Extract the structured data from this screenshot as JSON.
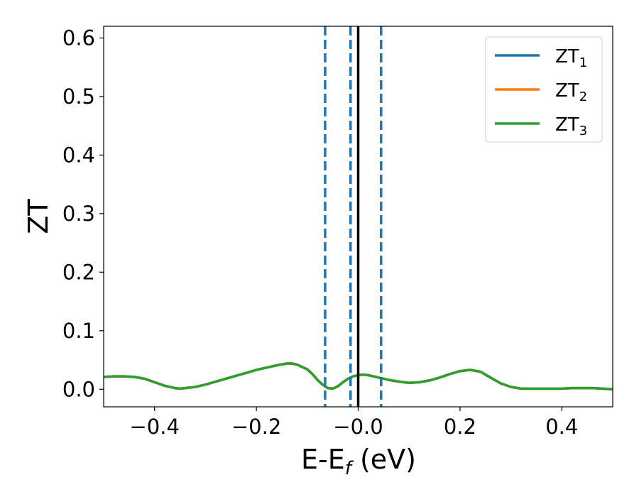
{
  "chart_data": {
    "type": "line",
    "xlabel": "E-E",
    "xlabel_sub": "f",
    "xlabel_unit": " (eV)",
    "ylabel": "ZT",
    "xlim": [
      -0.5,
      0.5
    ],
    "ylim": [
      -0.03,
      0.62
    ],
    "xticks": [
      -0.4,
      -0.2,
      0.0,
      0.2,
      0.4
    ],
    "xtick_labels": [
      "−0.4",
      "−0.2",
      "−0.0",
      "0.2",
      "0.4"
    ],
    "yticks": [
      0.0,
      0.1,
      0.2,
      0.3,
      0.4,
      0.5,
      0.6
    ],
    "ytick_labels": [
      "0.0",
      "0.1",
      "0.2",
      "0.3",
      "0.4",
      "0.5",
      "0.6"
    ],
    "grid": false,
    "legend_position": "top-right",
    "colors": {
      "ZT1": "#1f77b4",
      "ZT2": "#ff7f0e",
      "ZT3": "#2ca02c",
      "fermi": "#000000"
    },
    "vlines": [
      {
        "x": -0.065,
        "style": "dashed",
        "color": "#1f77b4"
      },
      {
        "x": -0.015,
        "style": "dashed",
        "color": "#1f77b4"
      },
      {
        "x": 0.045,
        "style": "dashed",
        "color": "#1f77b4"
      },
      {
        "x": 0.0,
        "style": "solid",
        "color": "#000000"
      }
    ],
    "x": [
      -0.5,
      -0.48,
      -0.46,
      -0.44,
      -0.42,
      -0.4,
      -0.38,
      -0.36,
      -0.35,
      -0.34,
      -0.32,
      -0.3,
      -0.28,
      -0.26,
      -0.24,
      -0.22,
      -0.2,
      -0.18,
      -0.16,
      -0.14,
      -0.13,
      -0.12,
      -0.1,
      -0.09,
      -0.08,
      -0.07,
      -0.06,
      -0.05,
      -0.04,
      -0.03,
      -0.02,
      -0.01,
      0.0,
      0.01,
      0.02,
      0.03,
      0.04,
      0.05,
      0.06,
      0.08,
      0.1,
      0.12,
      0.14,
      0.16,
      0.18,
      0.2,
      0.22,
      0.24,
      0.26,
      0.28,
      0.3,
      0.32,
      0.34,
      0.36,
      0.38,
      0.4,
      0.42,
      0.44,
      0.46,
      0.48,
      0.5
    ],
    "series": [
      {
        "name": "ZT",
        "sub": "1",
        "values": [
          0.021,
          0.022,
          0.022,
          0.021,
          0.018,
          0.012,
          0.006,
          0.002,
          0.001,
          0.002,
          0.004,
          0.008,
          0.013,
          0.018,
          0.023,
          0.028,
          0.033,
          0.037,
          0.041,
          0.044,
          0.044,
          0.042,
          0.034,
          0.026,
          0.016,
          0.008,
          0.002,
          0.001,
          0.005,
          0.012,
          0.018,
          0.022,
          0.024,
          0.025,
          0.024,
          0.022,
          0.02,
          0.018,
          0.016,
          0.013,
          0.011,
          0.012,
          0.015,
          0.02,
          0.026,
          0.031,
          0.033,
          0.03,
          0.02,
          0.01,
          0.004,
          0.001,
          0.001,
          0.001,
          0.001,
          0.001,
          0.002,
          0.002,
          0.002,
          0.001,
          0.0
        ]
      },
      {
        "name": "ZT",
        "sub": "2",
        "values": [
          0.021,
          0.022,
          0.022,
          0.021,
          0.018,
          0.012,
          0.006,
          0.002,
          0.001,
          0.002,
          0.004,
          0.008,
          0.013,
          0.018,
          0.023,
          0.028,
          0.033,
          0.037,
          0.041,
          0.044,
          0.044,
          0.042,
          0.034,
          0.026,
          0.016,
          0.008,
          0.002,
          0.001,
          0.005,
          0.012,
          0.018,
          0.022,
          0.024,
          0.025,
          0.024,
          0.022,
          0.02,
          0.018,
          0.016,
          0.013,
          0.011,
          0.012,
          0.015,
          0.02,
          0.026,
          0.031,
          0.033,
          0.03,
          0.02,
          0.01,
          0.004,
          0.001,
          0.001,
          0.001,
          0.001,
          0.001,
          0.002,
          0.002,
          0.002,
          0.001,
          0.0
        ]
      },
      {
        "name": "ZT",
        "sub": "3",
        "values": [
          0.021,
          0.022,
          0.022,
          0.021,
          0.018,
          0.012,
          0.006,
          0.002,
          0.001,
          0.002,
          0.004,
          0.008,
          0.013,
          0.018,
          0.023,
          0.028,
          0.033,
          0.037,
          0.041,
          0.044,
          0.044,
          0.042,
          0.034,
          0.026,
          0.016,
          0.008,
          0.002,
          0.001,
          0.005,
          0.012,
          0.018,
          0.022,
          0.024,
          0.025,
          0.024,
          0.022,
          0.02,
          0.018,
          0.016,
          0.013,
          0.011,
          0.012,
          0.015,
          0.02,
          0.026,
          0.031,
          0.033,
          0.03,
          0.02,
          0.01,
          0.004,
          0.001,
          0.001,
          0.001,
          0.001,
          0.001,
          0.002,
          0.002,
          0.002,
          0.001,
          0.0
        ]
      }
    ]
  }
}
